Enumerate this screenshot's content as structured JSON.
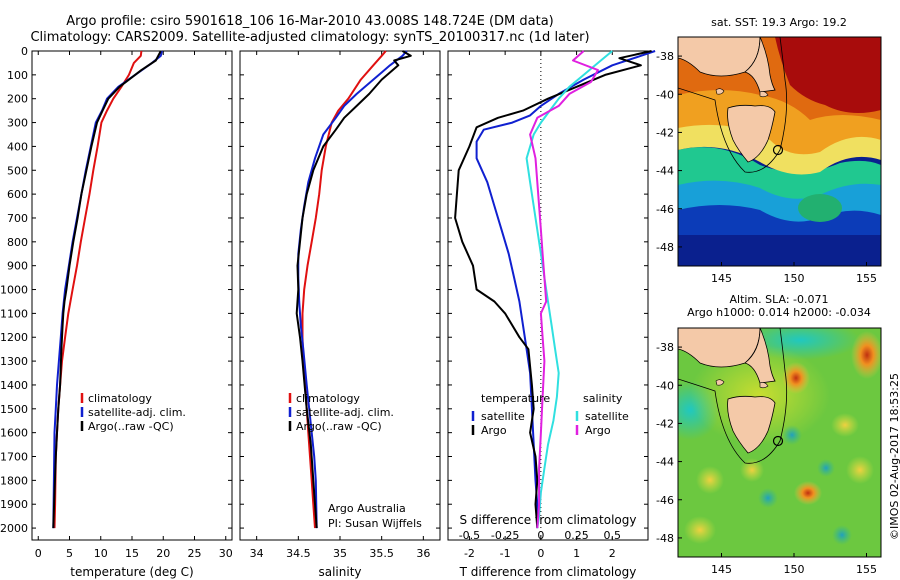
{
  "header": {
    "title_line1": "Argo profile: csiro 5901618_106 16-Mar-2010 43.008S 148.724E (DM data)",
    "title_line2": "Climatology: CARS2009. Satellite-adjusted climatology: synTS_20100317.nc (1d later)"
  },
  "colors": {
    "climatology": "#e01010",
    "satellite": "#1020d0",
    "argo": "#000000",
    "salinity_satellite": "#30e0e0",
    "salinity_argo": "#e020e0",
    "land": "#f4c9a8"
  },
  "chart_data": [
    {
      "type": "line",
      "xlabel": "temperature (deg C)",
      "ylabel": "",
      "xlim": [
        -1,
        31
      ],
      "ylim": [
        2050,
        0
      ],
      "xticks": [
        0,
        5,
        10,
        15,
        20,
        25,
        30
      ],
      "yticks": [
        0,
        100,
        200,
        300,
        400,
        500,
        600,
        700,
        800,
        900,
        1000,
        1100,
        1200,
        1300,
        1400,
        1500,
        1600,
        1700,
        1800,
        1900,
        2000
      ],
      "legend": [
        "climatology",
        "satellite-adj. clim.",
        "Argo(..raw -QC)"
      ],
      "legend_position": "bottom-center",
      "series": [
        {
          "name": "climatology",
          "color": "#e01010",
          "x": [
            16.5,
            16.4,
            15.3,
            14.5,
            13.3,
            12.0,
            11.0,
            10.1,
            9.5,
            8.8,
            8.2,
            7.5,
            6.8,
            6.2,
            5.5,
            4.8,
            4.3,
            3.8,
            3.5,
            3.2,
            3.0,
            2.8,
            2.7,
            2.6
          ],
          "y": [
            0,
            20,
            50,
            100,
            150,
            200,
            250,
            300,
            400,
            500,
            600,
            700,
            800,
            900,
            1000,
            1100,
            1200,
            1300,
            1400,
            1500,
            1600,
            1700,
            1900,
            2000
          ]
        },
        {
          "name": "satellite-adj. clim.",
          "color": "#1020d0",
          "x": [
            19.8,
            19.6,
            18.2,
            15.5,
            12.8,
            11.0,
            10.2,
            9.2,
            8.4,
            7.6,
            6.9,
            6.2,
            5.5,
            4.9,
            4.3,
            3.9,
            3.6,
            3.3,
            3.0,
            2.8,
            2.6,
            2.5,
            2.4
          ],
          "y": [
            0,
            20,
            50,
            100,
            150,
            200,
            250,
            300,
            400,
            500,
            600,
            700,
            800,
            900,
            1000,
            1100,
            1200,
            1300,
            1400,
            1500,
            1600,
            1800,
            2000
          ]
        },
        {
          "name": "Argo(..raw -QC)",
          "color": "#000000",
          "x": [
            19.6,
            19.3,
            18.8,
            16.5,
            13.0,
            11.2,
            10.3,
            9.4,
            8.5,
            7.7,
            6.9,
            6.3,
            5.6,
            5.0,
            4.5,
            4.2,
            4.0,
            3.9,
            3.7,
            3.5,
            3.2,
            3.0,
            2.8,
            2.6,
            2.4
          ],
          "y": [
            0,
            15,
            40,
            80,
            150,
            200,
            250,
            300,
            400,
            500,
            600,
            700,
            800,
            900,
            1000,
            1050,
            1100,
            1150,
            1250,
            1400,
            1500,
            1600,
            1700,
            1850,
            2000
          ]
        }
      ]
    },
    {
      "type": "line",
      "xlabel": "salinity",
      "ylabel": "",
      "xlim": [
        33.8,
        36.2
      ],
      "ylim": [
        2050,
        0
      ],
      "xticks": [
        34,
        34.5,
        35,
        35.5,
        36
      ],
      "legend": [
        "climatology",
        "satellite-adj. clim.",
        "Argo(..raw -QC)"
      ],
      "legend_position": "bottom-right",
      "annotation": [
        "Argo Australia",
        "PI: Susan Wijffels"
      ],
      "series": [
        {
          "name": "climatology",
          "color": "#e01010",
          "x": [
            35.55,
            35.5,
            35.4,
            35.25,
            35.1,
            34.98,
            34.9,
            34.83,
            34.78,
            34.75,
            34.71,
            34.66,
            34.61,
            34.57,
            34.55,
            34.55,
            34.56,
            34.58,
            34.6,
            34.62,
            34.64,
            34.66,
            34.68,
            34.7
          ],
          "y": [
            0,
            20,
            60,
            120,
            200,
            250,
            300,
            400,
            500,
            600,
            700,
            800,
            900,
            1000,
            1100,
            1200,
            1300,
            1400,
            1500,
            1600,
            1700,
            1800,
            1900,
            2000
          ]
        },
        {
          "name": "satellite-adj. clim.",
          "color": "#1020d0",
          "x": [
            35.8,
            35.75,
            35.6,
            35.4,
            35.2,
            35.05,
            34.95,
            34.8,
            34.7,
            34.62,
            34.57,
            34.53,
            34.5,
            34.5,
            34.51,
            34.53,
            34.56,
            34.6,
            34.63,
            34.66,
            34.69,
            34.71,
            34.72
          ],
          "y": [
            0,
            20,
            60,
            120,
            180,
            230,
            280,
            350,
            450,
            550,
            650,
            750,
            850,
            950,
            1050,
            1150,
            1250,
            1400,
            1500,
            1600,
            1700,
            1800,
            2000
          ]
        },
        {
          "name": "Argo(..raw -QC)",
          "color": "#000000",
          "x": [
            35.75,
            35.85,
            35.65,
            35.7,
            35.5,
            35.35,
            35.2,
            35.05,
            34.95,
            34.8,
            34.68,
            34.6,
            34.55,
            34.52,
            34.49,
            34.5,
            34.48,
            34.52,
            34.55,
            34.6,
            34.65,
            34.68,
            34.7,
            34.72
          ],
          "y": [
            0,
            20,
            40,
            60,
            120,
            180,
            230,
            280,
            330,
            400,
            500,
            600,
            700,
            800,
            900,
            1000,
            1100,
            1200,
            1300,
            1500,
            1650,
            1800,
            1900,
            2000
          ]
        }
      ]
    },
    {
      "type": "line",
      "xlabel": "T difference from climatology",
      "xlabel2": "S difference from climatology",
      "ylabel": "",
      "xlim": [
        -2.6,
        3.0
      ],
      "ylim": [
        2050,
        0
      ],
      "xticks": [
        -2,
        -1,
        0,
        1,
        2
      ],
      "xticks_salinity": [
        {
          "label": "-0.5",
          "at": -2
        },
        {
          "label": "-0.25",
          "at": -1
        },
        {
          "label": "0",
          "at": 0
        },
        {
          "label": "0.25",
          "at": 1
        },
        {
          "label": "0.5",
          "at": 2
        }
      ],
      "legend_groups": [
        {
          "title": "temperature",
          "items": [
            "satellite",
            "Argo"
          ]
        },
        {
          "title": "salinity",
          "items": [
            "satellite",
            "Argo"
          ]
        }
      ],
      "legend_position": "bottom-center",
      "series": [
        {
          "name": "satellite",
          "group": "temperature",
          "color": "#1020d0",
          "x": [
            3.2,
            2.8,
            2.0,
            1.2,
            0.5,
            0.0,
            -0.3,
            -0.8,
            -1.6,
            -1.8,
            -1.8,
            -1.5,
            -1.3,
            -1.1,
            -0.9,
            -0.75,
            -0.6,
            -0.5,
            -0.4,
            -0.3,
            -0.25,
            -0.2,
            -0.15,
            -0.1,
            -0.1
          ],
          "y": [
            0,
            20,
            60,
            120,
            180,
            230,
            270,
            300,
            330,
            380,
            450,
            550,
            650,
            750,
            850,
            950,
            1050,
            1150,
            1250,
            1350,
            1500,
            1650,
            1800,
            1900,
            2000
          ]
        },
        {
          "name": "Argo",
          "group": "temperature",
          "color": "#000000",
          "x": [
            3.1,
            2.2,
            2.8,
            1.8,
            1.0,
            0.2,
            -0.5,
            -1.2,
            -1.8,
            -2.0,
            -2.3,
            -2.4,
            -2.2,
            -1.9,
            -1.8,
            -1.3,
            -1.0,
            -0.6,
            -0.35,
            -0.25,
            -0.2,
            -0.3,
            -0.15,
            -0.1,
            -0.15,
            -0.1
          ],
          "y": [
            0,
            30,
            60,
            100,
            150,
            200,
            250,
            280,
            320,
            400,
            500,
            700,
            800,
            900,
            1000,
            1050,
            1100,
            1200,
            1250,
            1400,
            1500,
            1600,
            1700,
            1800,
            1900,
            2000
          ]
        },
        {
          "name": "satellite",
          "group": "salinity",
          "color": "#30e0e0",
          "x": [
            2.0,
            1.6,
            1.2,
            0.8,
            0.5,
            0.25,
            0.0,
            -0.2,
            -0.4,
            -0.3,
            -0.2,
            -0.1,
            0.0,
            0.1,
            0.2,
            0.3,
            0.4,
            0.5,
            0.45,
            0.35,
            0.2,
            0.1,
            0.0,
            -0.05,
            -0.1
          ],
          "y": [
            0,
            50,
            100,
            150,
            200,
            250,
            300,
            350,
            450,
            550,
            650,
            750,
            850,
            950,
            1050,
            1150,
            1250,
            1350,
            1450,
            1550,
            1650,
            1750,
            1850,
            1950,
            2000
          ]
        },
        {
          "name": "Argo",
          "group": "salinity",
          "color": "#e020e0",
          "x": [
            1.2,
            0.9,
            1.6,
            1.4,
            0.8,
            0.5,
            -0.1,
            -0.3,
            -0.15,
            -0.1,
            -0.05,
            0.0,
            0.05,
            0.1,
            0.15,
            0.0,
            0.05,
            0.1,
            0.05,
            0.0,
            -0.05,
            -0.05,
            -0.1
          ],
          "y": [
            0,
            40,
            80,
            130,
            180,
            230,
            280,
            350,
            450,
            550,
            650,
            750,
            850,
            950,
            1050,
            1100,
            1200,
            1300,
            1450,
            1600,
            1750,
            1900,
            2000
          ]
        }
      ]
    }
  ],
  "maps": [
    {
      "title": "sat. SST: 19.3  Argo: 19.2",
      "xlim": [
        142,
        156
      ],
      "ylim": [
        -49,
        -37
      ],
      "xticks": [
        145,
        150,
        155
      ],
      "yticks": [
        -38,
        -40,
        -42,
        -44,
        -46,
        -48
      ],
      "float_position": {
        "lon": 148.724,
        "lat": -43.008
      },
      "variable": "SST"
    },
    {
      "title": "Altim. SLA: -0.071",
      "subtitle": "Argo h1000: 0.014 h2000: -0.034",
      "xlim": [
        142,
        156
      ],
      "ylim": [
        -49,
        -37
      ],
      "xticks": [
        145,
        150,
        155
      ],
      "yticks": [
        -38,
        -40,
        -42,
        -44,
        -46,
        -48
      ],
      "float_position": {
        "lon": 148.724,
        "lat": -43.008
      },
      "variable": "SLA"
    }
  ],
  "credit": "©IMOS 02-Aug-2017 18:53:25"
}
